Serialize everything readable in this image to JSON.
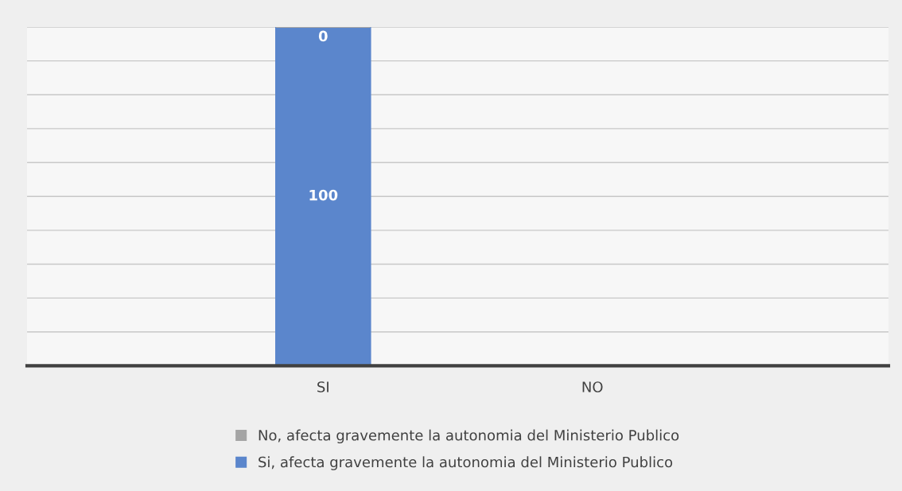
{
  "chart_data": {
    "type": "bar",
    "stacked": true,
    "categories": [
      "SI",
      "NO"
    ],
    "series": [
      {
        "name": "Si, afecta gravemente la autonomia del Ministerio Publico",
        "color": "#5b86cc",
        "values": [
          100,
          0
        ],
        "value_labels": [
          "100",
          null
        ]
      },
      {
        "name": "No, afecta gravemente la autonomia del Ministerio Publico",
        "color": "#a5a5a5",
        "values": [
          0,
          0
        ],
        "value_labels": [
          "0",
          null
        ]
      }
    ],
    "ylim": [
      0,
      100
    ],
    "yticks": [
      {
        "value": 0,
        "label": null
      },
      {
        "value": 10,
        "label": null
      },
      {
        "value": 20,
        "label": null
      },
      {
        "value": 30,
        "label": null
      },
      {
        "value": 40,
        "label": null
      },
      {
        "value": 50,
        "label": null
      },
      {
        "value": 60,
        "label": null
      },
      {
        "value": 70,
        "label": null
      },
      {
        "value": 80,
        "label": null
      },
      {
        "value": 90,
        "label": null
      },
      {
        "value": 100,
        "label": null
      }
    ],
    "tick_labels": "x",
    "grid": "y",
    "legend": "bottom"
  }
}
